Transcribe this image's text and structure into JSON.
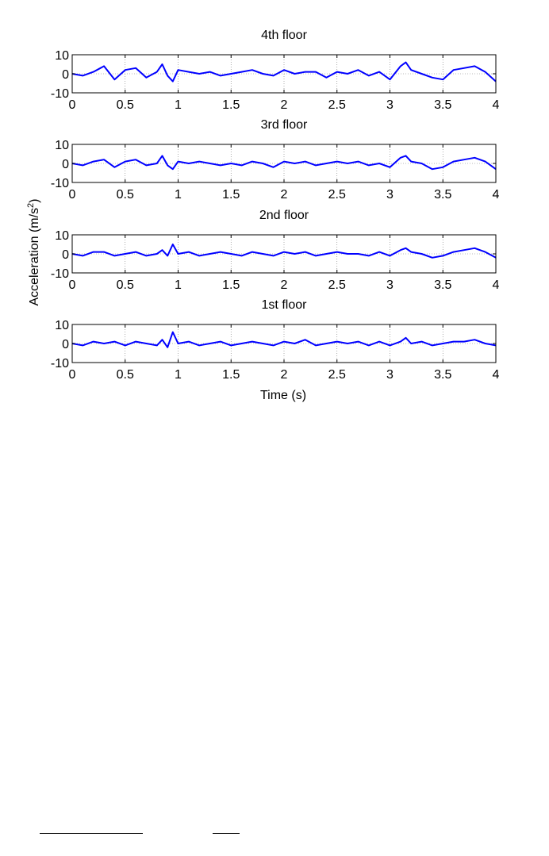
{
  "chart_data": {
    "type": "line",
    "xlabel": "Time (s)",
    "ylabel_main": "Acceleration (m/s",
    "ylabel_sup": "2",
    "ylabel_close": ")",
    "x_ticks": [
      "0",
      "0.5",
      "1",
      "1.5",
      "2",
      "2.5",
      "3",
      "3.5",
      "4"
    ],
    "y_ticks": [
      "10",
      "0",
      "-10"
    ],
    "line_color": "#0000ff",
    "grid": "dotted",
    "panels": [
      {
        "title": "4th floor",
        "xlim": [
          0,
          4
        ],
        "ylim": [
          -10,
          10
        ],
        "x": [
          0,
          0.1,
          0.2,
          0.3,
          0.4,
          0.5,
          0.6,
          0.7,
          0.8,
          0.85,
          0.9,
          0.95,
          1.0,
          1.1,
          1.2,
          1.3,
          1.4,
          1.5,
          1.6,
          1.7,
          1.8,
          1.9,
          2.0,
          2.1,
          2.2,
          2.3,
          2.4,
          2.5,
          2.6,
          2.7,
          2.8,
          2.9,
          3.0,
          3.1,
          3.15,
          3.2,
          3.3,
          3.4,
          3.5,
          3.6,
          3.7,
          3.8,
          3.9,
          4.0
        ],
        "y": [
          0,
          -1,
          1,
          4,
          -3,
          2,
          3,
          -2,
          1,
          5,
          -1,
          -4,
          2,
          1,
          0,
          1,
          -1,
          0,
          1,
          2,
          0,
          -1,
          2,
          0,
          1,
          1,
          -2,
          1,
          0,
          2,
          -1,
          1,
          -3,
          4,
          6,
          2,
          0,
          -2,
          -3,
          2,
          3,
          4,
          1,
          -4
        ]
      },
      {
        "title": "3rd floor",
        "xlim": [
          0,
          4
        ],
        "ylim": [
          -10,
          10
        ],
        "x": [
          0,
          0.1,
          0.2,
          0.3,
          0.4,
          0.5,
          0.6,
          0.7,
          0.8,
          0.85,
          0.9,
          0.95,
          1.0,
          1.1,
          1.2,
          1.3,
          1.4,
          1.5,
          1.6,
          1.7,
          1.8,
          1.9,
          2.0,
          2.1,
          2.2,
          2.3,
          2.4,
          2.5,
          2.6,
          2.7,
          2.8,
          2.9,
          3.0,
          3.1,
          3.15,
          3.2,
          3.3,
          3.4,
          3.5,
          3.6,
          3.7,
          3.8,
          3.9,
          4.0
        ],
        "y": [
          0,
          -1,
          1,
          2,
          -2,
          1,
          2,
          -1,
          0,
          4,
          -1,
          -3,
          1,
          0,
          1,
          0,
          -1,
          0,
          -1,
          1,
          0,
          -2,
          1,
          0,
          1,
          -1,
          0,
          1,
          0,
          1,
          -1,
          0,
          -2,
          3,
          4,
          1,
          0,
          -3,
          -2,
          1,
          2,
          3,
          1,
          -3
        ]
      },
      {
        "title": "2nd floor",
        "xlim": [
          0,
          4
        ],
        "ylim": [
          -10,
          10
        ],
        "x": [
          0,
          0.1,
          0.2,
          0.3,
          0.4,
          0.5,
          0.6,
          0.7,
          0.8,
          0.85,
          0.9,
          0.95,
          1.0,
          1.1,
          1.2,
          1.3,
          1.4,
          1.5,
          1.6,
          1.7,
          1.8,
          1.9,
          2.0,
          2.1,
          2.2,
          2.3,
          2.4,
          2.5,
          2.6,
          2.7,
          2.8,
          2.9,
          3.0,
          3.1,
          3.15,
          3.2,
          3.3,
          3.4,
          3.5,
          3.6,
          3.7,
          3.8,
          3.9,
          4.0
        ],
        "y": [
          0,
          -1,
          1,
          1,
          -1,
          0,
          1,
          -1,
          0,
          2,
          -1,
          5,
          0,
          1,
          -1,
          0,
          1,
          0,
          -1,
          1,
          0,
          -1,
          1,
          0,
          1,
          -1,
          0,
          1,
          0,
          0,
          -1,
          1,
          -1,
          2,
          3,
          1,
          0,
          -2,
          -1,
          1,
          2,
          3,
          1,
          -2
        ]
      },
      {
        "title": "1st floor",
        "xlim": [
          0,
          4
        ],
        "ylim": [
          -10,
          10
        ],
        "x": [
          0,
          0.1,
          0.2,
          0.3,
          0.4,
          0.5,
          0.6,
          0.7,
          0.8,
          0.85,
          0.9,
          0.95,
          1.0,
          1.1,
          1.2,
          1.3,
          1.4,
          1.5,
          1.6,
          1.7,
          1.8,
          1.9,
          2.0,
          2.1,
          2.2,
          2.3,
          2.4,
          2.5,
          2.6,
          2.7,
          2.8,
          2.9,
          3.0,
          3.1,
          3.15,
          3.2,
          3.3,
          3.4,
          3.5,
          3.6,
          3.7,
          3.8,
          3.9,
          4.0
        ],
        "y": [
          0,
          -1,
          1,
          0,
          1,
          -1,
          1,
          0,
          -1,
          2,
          -2,
          6,
          0,
          1,
          -1,
          0,
          1,
          -1,
          0,
          1,
          0,
          -1,
          1,
          0,
          2,
          -1,
          0,
          1,
          0,
          1,
          -1,
          1,
          -1,
          1,
          3,
          0,
          1,
          -1,
          0,
          1,
          1,
          2,
          0,
          -1
        ]
      }
    ]
  }
}
